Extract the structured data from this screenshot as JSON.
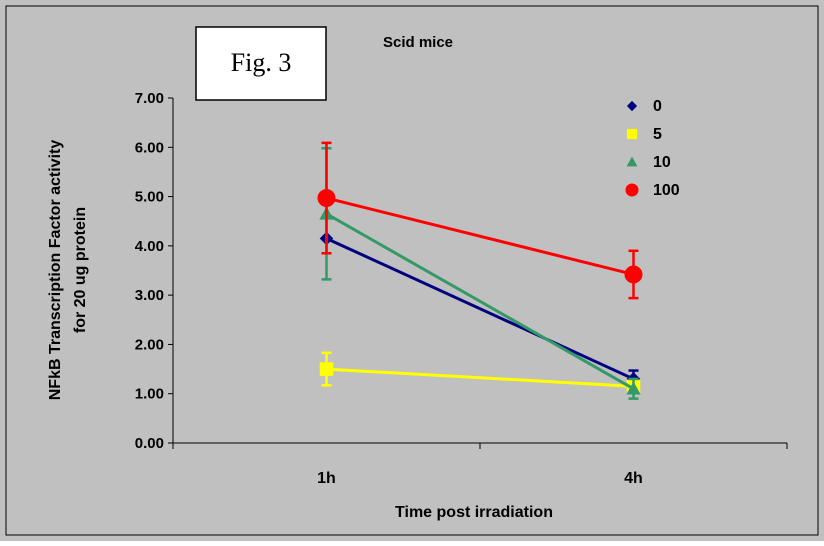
{
  "figure_label": "Fig. 3",
  "chart_data": {
    "type": "line",
    "title": "Scid mice",
    "xlabel": "Time post irradiation",
    "ylabel_lines": [
      "NFkB Transcription Factor activity",
      "for 20 ug protein"
    ],
    "categories": [
      "1h",
      "4h"
    ],
    "ylim": [
      0,
      7
    ],
    "yticks": [
      "0.00",
      "1.00",
      "2.00",
      "3.00",
      "4.00",
      "5.00",
      "6.00",
      "7.00"
    ],
    "grid": false,
    "legend_position": "top-right",
    "series": [
      {
        "name": "0",
        "values": [
          4.15,
          1.3
        ],
        "errors": [
          null,
          0.17
        ],
        "color": "#000080",
        "marker": "diamond"
      },
      {
        "name": "5",
        "values": [
          1.5,
          1.15
        ],
        "errors": [
          0.33,
          0.1
        ],
        "color": "#ffff00",
        "marker": "square"
      },
      {
        "name": "10",
        "values": [
          4.65,
          1.1
        ],
        "errors": [
          1.33,
          0.2
        ],
        "color": "#339966",
        "marker": "triangle"
      },
      {
        "name": "100",
        "values": [
          4.97,
          3.42
        ],
        "errors": [
          1.12,
          0.48
        ],
        "color": "#ff0000",
        "marker": "circle"
      }
    ],
    "colors": {
      "plot_background": "#c0c0c0",
      "chart_background": "#c0c0c0",
      "axis": "#000000"
    }
  }
}
